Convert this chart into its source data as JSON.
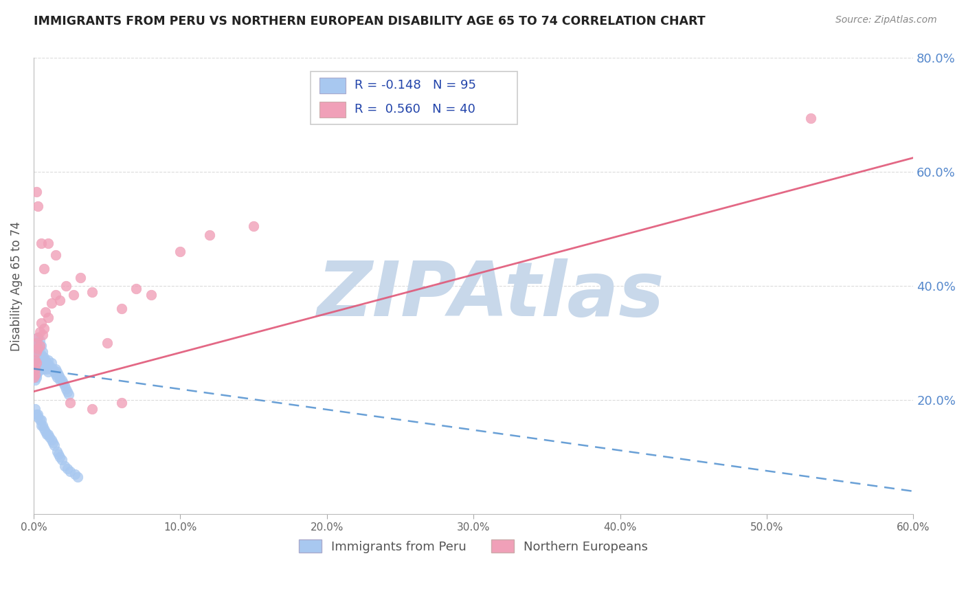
{
  "title": "IMMIGRANTS FROM PERU VS NORTHERN EUROPEAN DISABILITY AGE 65 TO 74 CORRELATION CHART",
  "source": "Source: ZipAtlas.com",
  "ylabel": "Disability Age 65 to 74",
  "xlim": [
    0.0,
    0.6
  ],
  "ylim": [
    0.0,
    0.8
  ],
  "xticks": [
    0.0,
    0.1,
    0.2,
    0.3,
    0.4,
    0.5,
    0.6
  ],
  "xtick_labels": [
    "0.0%",
    "10.0%",
    "20.0%",
    "30.0%",
    "40.0%",
    "50.0%",
    "60.0%"
  ],
  "yticks": [
    0.2,
    0.4,
    0.6,
    0.8
  ],
  "ytick_labels": [
    "20.0%",
    "40.0%",
    "60.0%",
    "80.0%"
  ],
  "grid_color": "#cccccc",
  "background_color": "#ffffff",
  "series1_label": "Immigrants from Peru",
  "series1_color": "#a8c8f0",
  "series1_trend_color": "#4488cc",
  "series2_label": "Northern Europeans",
  "series2_color": "#f0a0b8",
  "series2_trend_color": "#e05878",
  "watermark": "ZIPAtlas",
  "watermark_color": "#c8d8ea",
  "legend_text1": "R = -0.148   N = 95",
  "legend_text2": "R =  0.560   N = 40",
  "peru_x": [
    0.0,
    0.0,
    0.0,
    0.0,
    0.001,
    0.001,
    0.001,
    0.001,
    0.001,
    0.001,
    0.001,
    0.001,
    0.001,
    0.002,
    0.002,
    0.002,
    0.002,
    0.002,
    0.002,
    0.002,
    0.002,
    0.002,
    0.003,
    0.003,
    0.003,
    0.003,
    0.003,
    0.003,
    0.003,
    0.004,
    0.004,
    0.004,
    0.004,
    0.004,
    0.005,
    0.005,
    0.005,
    0.005,
    0.006,
    0.006,
    0.006,
    0.006,
    0.007,
    0.007,
    0.007,
    0.008,
    0.008,
    0.009,
    0.009,
    0.01,
    0.01,
    0.01,
    0.011,
    0.012,
    0.012,
    0.013,
    0.014,
    0.015,
    0.015,
    0.016,
    0.016,
    0.017,
    0.018,
    0.018,
    0.019,
    0.02,
    0.021,
    0.022,
    0.023,
    0.024,
    0.001,
    0.002,
    0.003,
    0.003,
    0.004,
    0.005,
    0.005,
    0.006,
    0.007,
    0.008,
    0.009,
    0.01,
    0.011,
    0.012,
    0.013,
    0.014,
    0.016,
    0.017,
    0.018,
    0.019,
    0.021,
    0.023,
    0.025,
    0.028,
    0.03
  ],
  "peru_y": [
    0.265,
    0.255,
    0.25,
    0.245,
    0.28,
    0.27,
    0.265,
    0.26,
    0.255,
    0.25,
    0.245,
    0.24,
    0.235,
    0.295,
    0.285,
    0.275,
    0.265,
    0.26,
    0.255,
    0.25,
    0.245,
    0.24,
    0.31,
    0.3,
    0.29,
    0.28,
    0.27,
    0.26,
    0.25,
    0.305,
    0.295,
    0.28,
    0.27,
    0.26,
    0.295,
    0.28,
    0.27,
    0.26,
    0.285,
    0.275,
    0.265,
    0.255,
    0.275,
    0.265,
    0.255,
    0.27,
    0.26,
    0.265,
    0.255,
    0.27,
    0.26,
    0.25,
    0.26,
    0.265,
    0.255,
    0.255,
    0.25,
    0.255,
    0.245,
    0.25,
    0.24,
    0.245,
    0.24,
    0.235,
    0.235,
    0.23,
    0.225,
    0.22,
    0.215,
    0.21,
    0.185,
    0.175,
    0.175,
    0.17,
    0.165,
    0.155,
    0.165,
    0.155,
    0.15,
    0.145,
    0.14,
    0.14,
    0.135,
    0.13,
    0.125,
    0.12,
    0.11,
    0.105,
    0.1,
    0.095,
    0.085,
    0.08,
    0.075,
    0.07,
    0.065
  ],
  "ne_x": [
    0.0,
    0.001,
    0.001,
    0.001,
    0.002,
    0.002,
    0.002,
    0.003,
    0.003,
    0.004,
    0.004,
    0.005,
    0.006,
    0.007,
    0.008,
    0.01,
    0.012,
    0.015,
    0.018,
    0.022,
    0.027,
    0.032,
    0.04,
    0.05,
    0.06,
    0.07,
    0.08,
    0.1,
    0.12,
    0.15,
    0.002,
    0.003,
    0.005,
    0.007,
    0.01,
    0.015,
    0.025,
    0.04,
    0.06,
    0.53
  ],
  "ne_y": [
    0.24,
    0.255,
    0.27,
    0.245,
    0.3,
    0.285,
    0.265,
    0.31,
    0.29,
    0.32,
    0.295,
    0.335,
    0.315,
    0.325,
    0.355,
    0.345,
    0.37,
    0.385,
    0.375,
    0.4,
    0.385,
    0.415,
    0.39,
    0.3,
    0.36,
    0.395,
    0.385,
    0.46,
    0.49,
    0.505,
    0.565,
    0.54,
    0.475,
    0.43,
    0.475,
    0.455,
    0.195,
    0.185,
    0.195,
    0.695
  ],
  "trend1_x0": 0.0,
  "trend1_y0": 0.255,
  "trend1_x1": 0.6,
  "trend1_y1": 0.04,
  "trend2_x0": 0.0,
  "trend2_y0": 0.215,
  "trend2_x1": 0.6,
  "trend2_y1": 0.625
}
